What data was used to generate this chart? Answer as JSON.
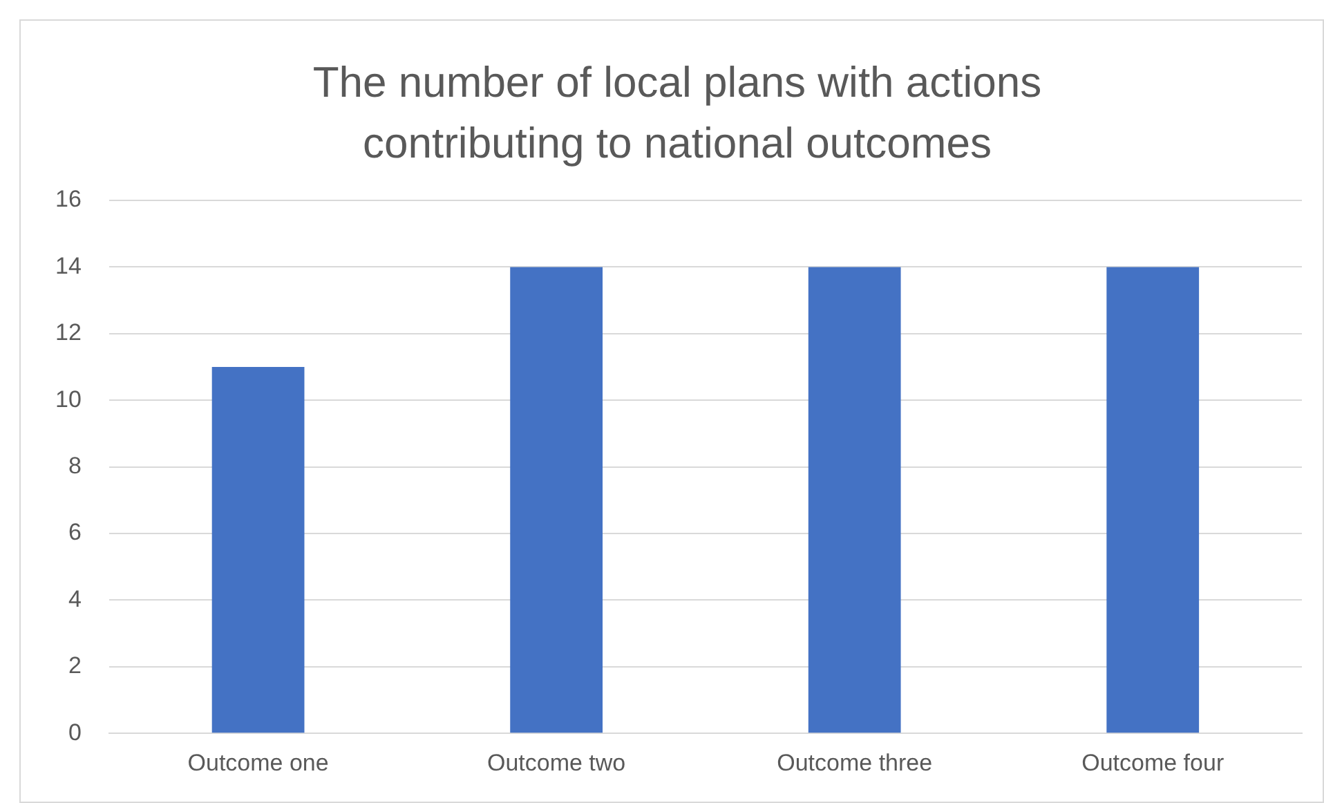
{
  "chart_data": {
    "type": "bar",
    "title": "The number of local plans with actions contributing to national outcomes",
    "categories": [
      "Outcome one",
      "Outcome two",
      "Outcome three",
      "Outcome four"
    ],
    "values": [
      11,
      14,
      14,
      14
    ],
    "color": "#4472c4",
    "ylim": [
      0,
      16
    ],
    "yticks": [
      0,
      2,
      4,
      6,
      8,
      10,
      12,
      14,
      16
    ],
    "grid": "y"
  }
}
